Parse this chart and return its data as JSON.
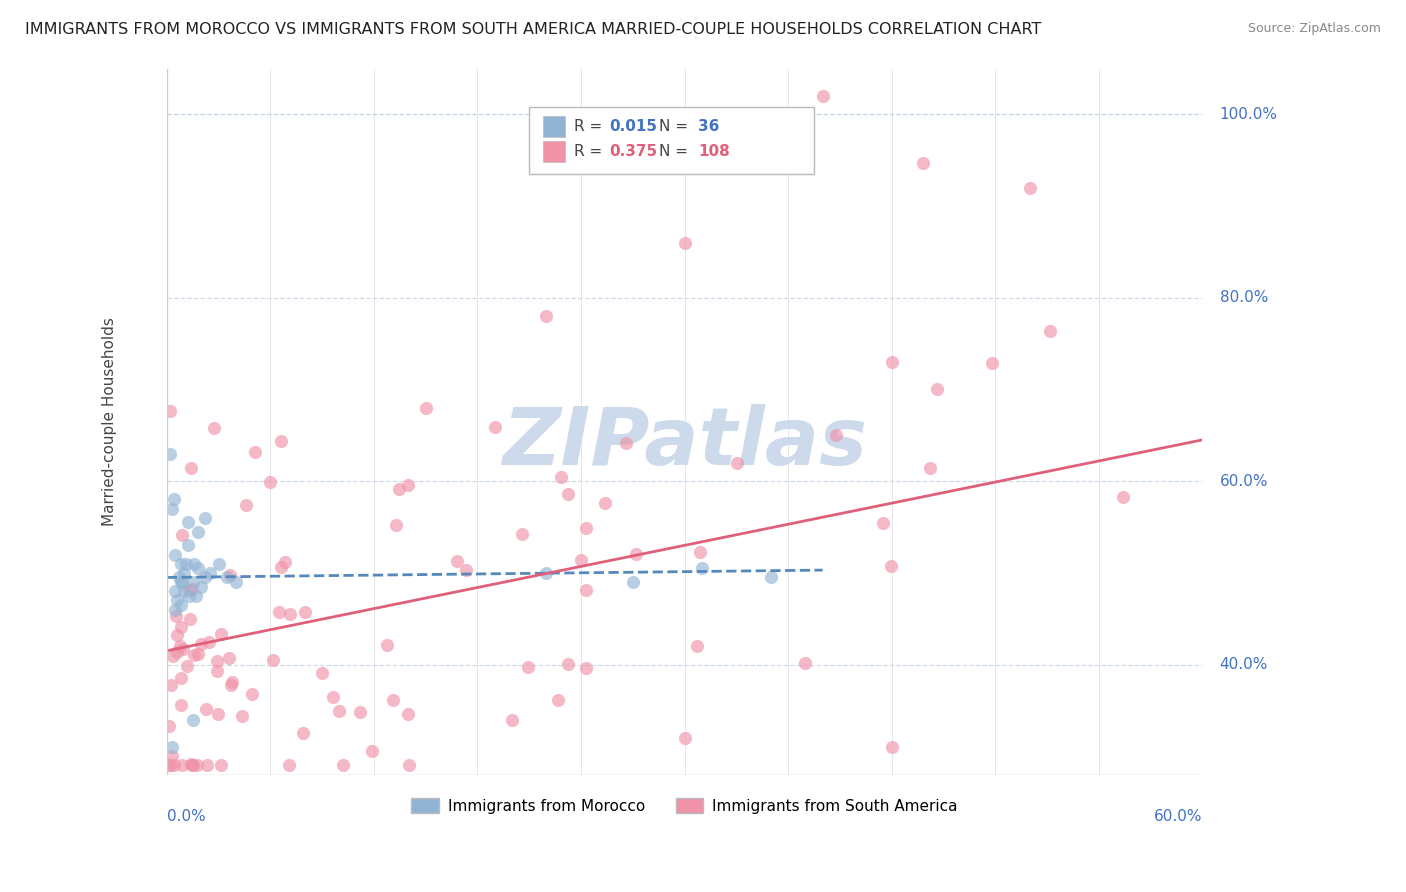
{
  "title": "IMMIGRANTS FROM MOROCCO VS IMMIGRANTS FROM SOUTH AMERICA MARRIED-COUPLE HOUSEHOLDS CORRELATION CHART",
  "source": "Source: ZipAtlas.com",
  "xlim": [
    0.0,
    0.6
  ],
  "ylim": [
    0.28,
    1.05
  ],
  "ylabel_ticks": [
    40.0,
    60.0,
    80.0,
    100.0
  ],
  "morocco_R": 0.015,
  "morocco_N": 36,
  "sa_R": 0.375,
  "sa_N": 108,
  "morocco_color": "#92b4d4",
  "sa_color": "#f093a8",
  "morocco_line_color": "#5588bb",
  "sa_line_color": "#e0607a",
  "watermark_color": "#cddaeb",
  "legend_label_morocco": "Immigrants from Morocco",
  "legend_label_sa": "Immigrants from South America",
  "grid_color": "#c8d8e8",
  "border_color": "#cccccc",
  "tick_label_color": "#4472c4",
  "ylabel_text": "Married-couple Households",
  "title_fontsize": 11.5,
  "source_fontsize": 9,
  "tick_fontsize": 11
}
